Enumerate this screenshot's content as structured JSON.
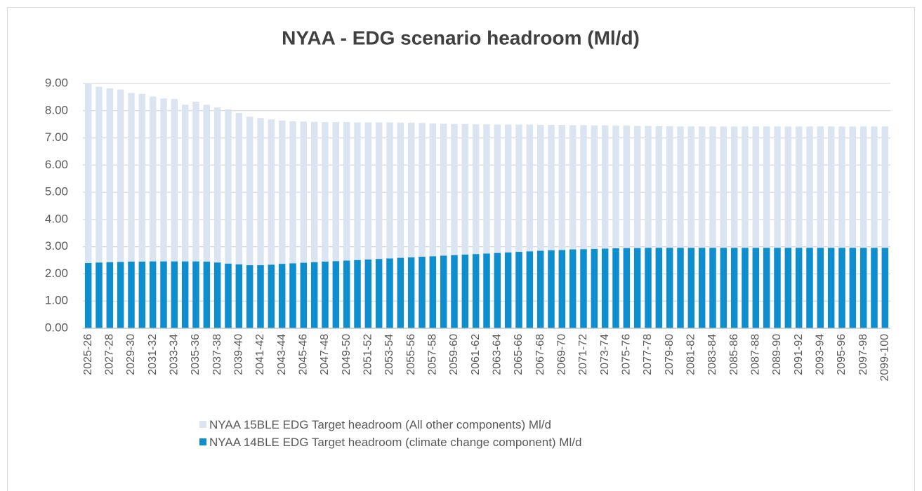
{
  "chart_data": {
    "type": "stacked_bar",
    "title": "NYAA - EDG scenario headroom (Ml/d)",
    "categories": [
      "2025-26",
      null,
      "2027-28",
      null,
      "2029-30",
      null,
      "2031-32",
      null,
      "2033-34",
      null,
      "2035-36",
      null,
      "2037-38",
      null,
      "2039-40",
      null,
      "2041-42",
      null,
      "2043-44",
      null,
      "2045-46",
      null,
      "2047-48",
      null,
      "2049-50",
      null,
      "2051-52",
      null,
      "2053-54",
      null,
      "2055-56",
      null,
      "2057-58",
      null,
      "2059-60",
      null,
      "2061-62",
      null,
      "2063-64",
      null,
      "2065-66",
      null,
      "2067-68",
      null,
      "2069-70",
      null,
      "2071-72",
      null,
      "2073-74",
      null,
      "2075-76",
      null,
      "2077-78",
      null,
      "2079-80",
      null,
      "2081-82",
      null,
      "2083-84",
      null,
      "2085-86",
      null,
      "2087-88",
      null,
      "2089-90",
      null,
      "2091-92",
      null,
      "2093-94",
      null,
      "2095-96",
      null,
      "2097-98",
      null,
      "2099-100"
    ],
    "series": [
      {
        "name": "NYAA 14BLE EDG Target headroom (climate change component) Ml/d",
        "color": "#0e8ecf",
        "values": [
          2.4,
          2.42,
          2.43,
          2.44,
          2.45,
          2.45,
          2.46,
          2.46,
          2.46,
          2.46,
          2.46,
          2.45,
          2.42,
          2.38,
          2.35,
          2.32,
          2.32,
          2.34,
          2.37,
          2.39,
          2.41,
          2.43,
          2.45,
          2.47,
          2.49,
          2.51,
          2.53,
          2.55,
          2.57,
          2.59,
          2.61,
          2.63,
          2.65,
          2.67,
          2.69,
          2.71,
          2.73,
          2.75,
          2.77,
          2.79,
          2.81,
          2.83,
          2.85,
          2.87,
          2.88,
          2.9,
          2.91,
          2.92,
          2.93,
          2.94,
          2.95,
          2.95,
          2.96,
          2.96,
          2.96,
          2.96,
          2.96,
          2.96,
          2.96,
          2.96,
          2.96,
          2.96,
          2.96,
          2.96,
          2.96,
          2.96,
          2.96,
          2.96,
          2.96,
          2.96,
          2.96,
          2.96,
          2.96,
          2.96,
          2.96
        ]
      },
      {
        "name": "NYAA 15BLE EDG Target headroom (All other components) Ml/d",
        "color": "#dbe5f1",
        "values": [
          6.58,
          6.46,
          6.39,
          6.34,
          6.2,
          6.17,
          6.06,
          5.99,
          5.97,
          5.76,
          5.87,
          5.77,
          5.7,
          5.67,
          5.57,
          5.46,
          5.41,
          5.34,
          5.27,
          5.22,
          5.19,
          5.16,
          5.13,
          5.11,
          5.09,
          5.06,
          5.04,
          5.02,
          5.0,
          4.97,
          4.95,
          4.92,
          4.88,
          4.85,
          4.82,
          4.8,
          4.77,
          4.75,
          4.72,
          4.7,
          4.68,
          4.66,
          4.63,
          4.61,
          4.6,
          4.57,
          4.56,
          4.54,
          4.53,
          4.51,
          4.5,
          4.49,
          4.48,
          4.47,
          4.47,
          4.46,
          4.46,
          4.46,
          4.46,
          4.46,
          4.46,
          4.46,
          4.46,
          4.46,
          4.46,
          4.46,
          4.46,
          4.46,
          4.46,
          4.46,
          4.46,
          4.46,
          4.46,
          4.46,
          4.46
        ]
      }
    ],
    "ylim": [
      0,
      9
    ],
    "yticks": [
      {
        "value": 0,
        "label": "0.00"
      },
      {
        "value": 1,
        "label": "1.00"
      },
      {
        "value": 2,
        "label": "2.00"
      },
      {
        "value": 3,
        "label": "3.00"
      },
      {
        "value": 4,
        "label": "4.00"
      },
      {
        "value": 5,
        "label": "5.00"
      },
      {
        "value": 6,
        "label": "6.00"
      },
      {
        "value": 7,
        "label": "7.00"
      },
      {
        "value": 8,
        "label": "8.00"
      },
      {
        "value": 9,
        "label": "9.00"
      }
    ],
    "grid": true,
    "legend": "bottom"
  }
}
